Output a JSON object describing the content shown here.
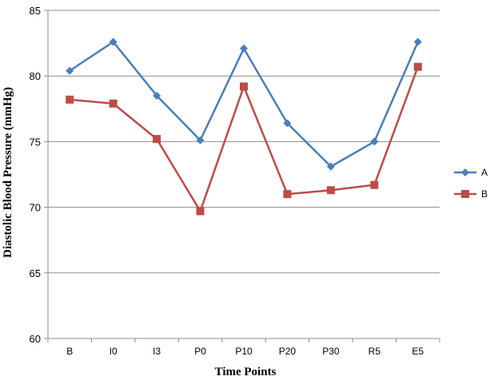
{
  "chart_data": {
    "type": "line",
    "categories": [
      "B",
      "I0",
      "I3",
      "P0",
      "P10",
      "P20",
      "P30",
      "R5",
      "E5"
    ],
    "series": [
      {
        "name": "A",
        "values": [
          80.4,
          82.6,
          78.5,
          75.1,
          82.1,
          76.4,
          73.1,
          75.0,
          82.6
        ],
        "color": "#4a7ebb",
        "marker": "diamond"
      },
      {
        "name": "B",
        "values": [
          78.2,
          77.9,
          75.2,
          69.7,
          79.2,
          71.0,
          71.3,
          71.7,
          80.7
        ],
        "color": "#be4b48",
        "marker": "square"
      }
    ],
    "xlabel": "Time Points",
    "ylabel": "Diastolic Blood Pressure (mmHg)",
    "ylim": [
      60,
      85
    ],
    "yticks": [
      60,
      65,
      70,
      75,
      80,
      85
    ],
    "grid": true,
    "legend_position": "right"
  }
}
